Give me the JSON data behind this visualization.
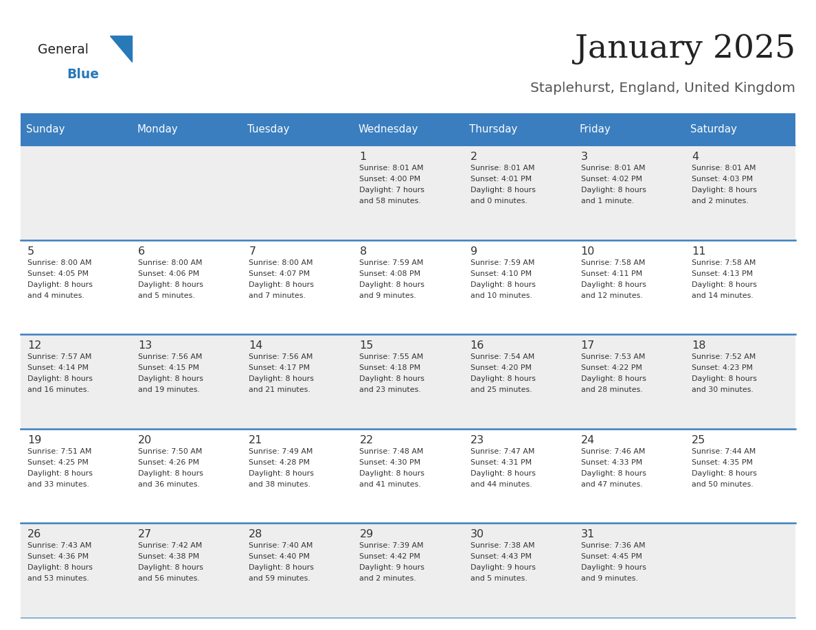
{
  "title": "January 2025",
  "subtitle": "Staplehurst, England, United Kingdom",
  "days_of_week": [
    "Sunday",
    "Monday",
    "Tuesday",
    "Wednesday",
    "Thursday",
    "Friday",
    "Saturday"
  ],
  "header_bg": "#3a7ebf",
  "header_text": "#ffffff",
  "row_bg_odd": "#eeeeee",
  "row_bg_even": "#ffffff",
  "cell_text_color": "#333333",
  "day_num_color": "#333333",
  "separator_color": "#3a7ebf",
  "title_color": "#222222",
  "subtitle_color": "#555555",
  "logo_general_color": "#222222",
  "logo_blue_color": "#2779b8",
  "calendar_data": [
    {
      "day": 1,
      "col": 3,
      "row": 0,
      "sunrise": "8:01 AM",
      "sunset": "4:00 PM",
      "daylight": "7 hours",
      "daylight2": "and 58 minutes."
    },
    {
      "day": 2,
      "col": 4,
      "row": 0,
      "sunrise": "8:01 AM",
      "sunset": "4:01 PM",
      "daylight": "8 hours",
      "daylight2": "and 0 minutes."
    },
    {
      "day": 3,
      "col": 5,
      "row": 0,
      "sunrise": "8:01 AM",
      "sunset": "4:02 PM",
      "daylight": "8 hours",
      "daylight2": "and 1 minute."
    },
    {
      "day": 4,
      "col": 6,
      "row": 0,
      "sunrise": "8:01 AM",
      "sunset": "4:03 PM",
      "daylight": "8 hours",
      "daylight2": "and 2 minutes."
    },
    {
      "day": 5,
      "col": 0,
      "row": 1,
      "sunrise": "8:00 AM",
      "sunset": "4:05 PM",
      "daylight": "8 hours",
      "daylight2": "and 4 minutes."
    },
    {
      "day": 6,
      "col": 1,
      "row": 1,
      "sunrise": "8:00 AM",
      "sunset": "4:06 PM",
      "daylight": "8 hours",
      "daylight2": "and 5 minutes."
    },
    {
      "day": 7,
      "col": 2,
      "row": 1,
      "sunrise": "8:00 AM",
      "sunset": "4:07 PM",
      "daylight": "8 hours",
      "daylight2": "and 7 minutes."
    },
    {
      "day": 8,
      "col": 3,
      "row": 1,
      "sunrise": "7:59 AM",
      "sunset": "4:08 PM",
      "daylight": "8 hours",
      "daylight2": "and 9 minutes."
    },
    {
      "day": 9,
      "col": 4,
      "row": 1,
      "sunrise": "7:59 AM",
      "sunset": "4:10 PM",
      "daylight": "8 hours",
      "daylight2": "and 10 minutes."
    },
    {
      "day": 10,
      "col": 5,
      "row": 1,
      "sunrise": "7:58 AM",
      "sunset": "4:11 PM",
      "daylight": "8 hours",
      "daylight2": "and 12 minutes."
    },
    {
      "day": 11,
      "col": 6,
      "row": 1,
      "sunrise": "7:58 AM",
      "sunset": "4:13 PM",
      "daylight": "8 hours",
      "daylight2": "and 14 minutes."
    },
    {
      "day": 12,
      "col": 0,
      "row": 2,
      "sunrise": "7:57 AM",
      "sunset": "4:14 PM",
      "daylight": "8 hours",
      "daylight2": "and 16 minutes."
    },
    {
      "day": 13,
      "col": 1,
      "row": 2,
      "sunrise": "7:56 AM",
      "sunset": "4:15 PM",
      "daylight": "8 hours",
      "daylight2": "and 19 minutes."
    },
    {
      "day": 14,
      "col": 2,
      "row": 2,
      "sunrise": "7:56 AM",
      "sunset": "4:17 PM",
      "daylight": "8 hours",
      "daylight2": "and 21 minutes."
    },
    {
      "day": 15,
      "col": 3,
      "row": 2,
      "sunrise": "7:55 AM",
      "sunset": "4:18 PM",
      "daylight": "8 hours",
      "daylight2": "and 23 minutes."
    },
    {
      "day": 16,
      "col": 4,
      "row": 2,
      "sunrise": "7:54 AM",
      "sunset": "4:20 PM",
      "daylight": "8 hours",
      "daylight2": "and 25 minutes."
    },
    {
      "day": 17,
      "col": 5,
      "row": 2,
      "sunrise": "7:53 AM",
      "sunset": "4:22 PM",
      "daylight": "8 hours",
      "daylight2": "and 28 minutes."
    },
    {
      "day": 18,
      "col": 6,
      "row": 2,
      "sunrise": "7:52 AM",
      "sunset": "4:23 PM",
      "daylight": "8 hours",
      "daylight2": "and 30 minutes."
    },
    {
      "day": 19,
      "col": 0,
      "row": 3,
      "sunrise": "7:51 AM",
      "sunset": "4:25 PM",
      "daylight": "8 hours",
      "daylight2": "and 33 minutes."
    },
    {
      "day": 20,
      "col": 1,
      "row": 3,
      "sunrise": "7:50 AM",
      "sunset": "4:26 PM",
      "daylight": "8 hours",
      "daylight2": "and 36 minutes."
    },
    {
      "day": 21,
      "col": 2,
      "row": 3,
      "sunrise": "7:49 AM",
      "sunset": "4:28 PM",
      "daylight": "8 hours",
      "daylight2": "and 38 minutes."
    },
    {
      "day": 22,
      "col": 3,
      "row": 3,
      "sunrise": "7:48 AM",
      "sunset": "4:30 PM",
      "daylight": "8 hours",
      "daylight2": "and 41 minutes."
    },
    {
      "day": 23,
      "col": 4,
      "row": 3,
      "sunrise": "7:47 AM",
      "sunset": "4:31 PM",
      "daylight": "8 hours",
      "daylight2": "and 44 minutes."
    },
    {
      "day": 24,
      "col": 5,
      "row": 3,
      "sunrise": "7:46 AM",
      "sunset": "4:33 PM",
      "daylight": "8 hours",
      "daylight2": "and 47 minutes."
    },
    {
      "day": 25,
      "col": 6,
      "row": 3,
      "sunrise": "7:44 AM",
      "sunset": "4:35 PM",
      "daylight": "8 hours",
      "daylight2": "and 50 minutes."
    },
    {
      "day": 26,
      "col": 0,
      "row": 4,
      "sunrise": "7:43 AM",
      "sunset": "4:36 PM",
      "daylight": "8 hours",
      "daylight2": "and 53 minutes."
    },
    {
      "day": 27,
      "col": 1,
      "row": 4,
      "sunrise": "7:42 AM",
      "sunset": "4:38 PM",
      "daylight": "8 hours",
      "daylight2": "and 56 minutes."
    },
    {
      "day": 28,
      "col": 2,
      "row": 4,
      "sunrise": "7:40 AM",
      "sunset": "4:40 PM",
      "daylight": "8 hours",
      "daylight2": "and 59 minutes."
    },
    {
      "day": 29,
      "col": 3,
      "row": 4,
      "sunrise": "7:39 AM",
      "sunset": "4:42 PM",
      "daylight": "9 hours",
      "daylight2": "and 2 minutes."
    },
    {
      "day": 30,
      "col": 4,
      "row": 4,
      "sunrise": "7:38 AM",
      "sunset": "4:43 PM",
      "daylight": "9 hours",
      "daylight2": "and 5 minutes."
    },
    {
      "day": 31,
      "col": 5,
      "row": 4,
      "sunrise": "7:36 AM",
      "sunset": "4:45 PM",
      "daylight": "9 hours",
      "daylight2": "and 9 minutes."
    }
  ]
}
